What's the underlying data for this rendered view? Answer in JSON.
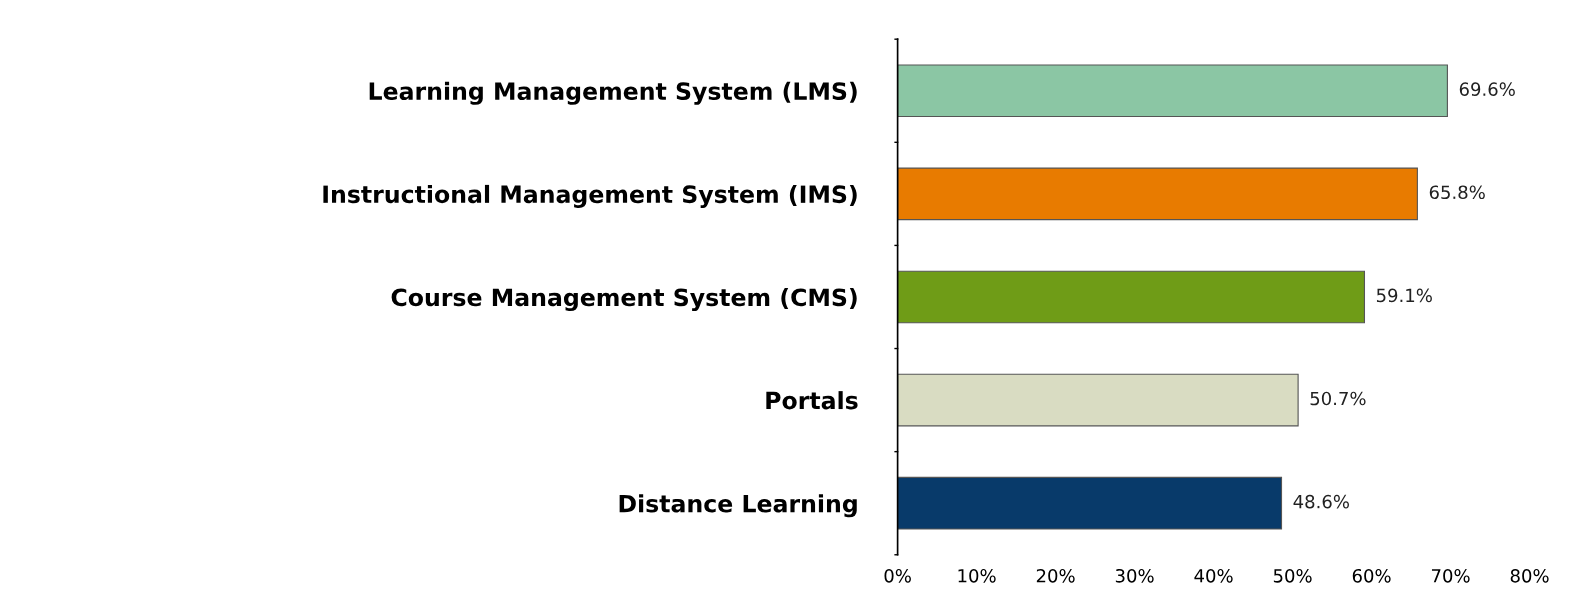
{
  "chart_data": {
    "type": "bar",
    "orientation": "horizontal",
    "categories": [
      "Learning Management System (LMS)",
      "Instructional Management System (IMS)",
      "Course Management System (CMS)",
      "Portals",
      "Distance Learning"
    ],
    "values": [
      69.6,
      65.8,
      59.1,
      50.7,
      48.6
    ],
    "value_labels": [
      "69.6%",
      "65.8%",
      "59.1%",
      "50.7%",
      "48.6%"
    ],
    "colors": [
      "#8bc6a4",
      "#e87b00",
      "#6f9c17",
      "#d9dcc2",
      "#083a6a"
    ],
    "xlim": [
      0,
      80
    ],
    "xticks": [
      {
        "value": 0,
        "label": "0%"
      },
      {
        "value": 10,
        "label": "10%"
      },
      {
        "value": 20,
        "label": "20%"
      },
      {
        "value": 30,
        "label": "30%"
      },
      {
        "value": 40,
        "label": "40%"
      },
      {
        "value": 50,
        "label": "50%"
      },
      {
        "value": 60,
        "label": "60%"
      },
      {
        "value": 70,
        "label": "70%"
      },
      {
        "value": 80,
        "label": "80%"
      }
    ],
    "grid": false,
    "legend": false
  }
}
